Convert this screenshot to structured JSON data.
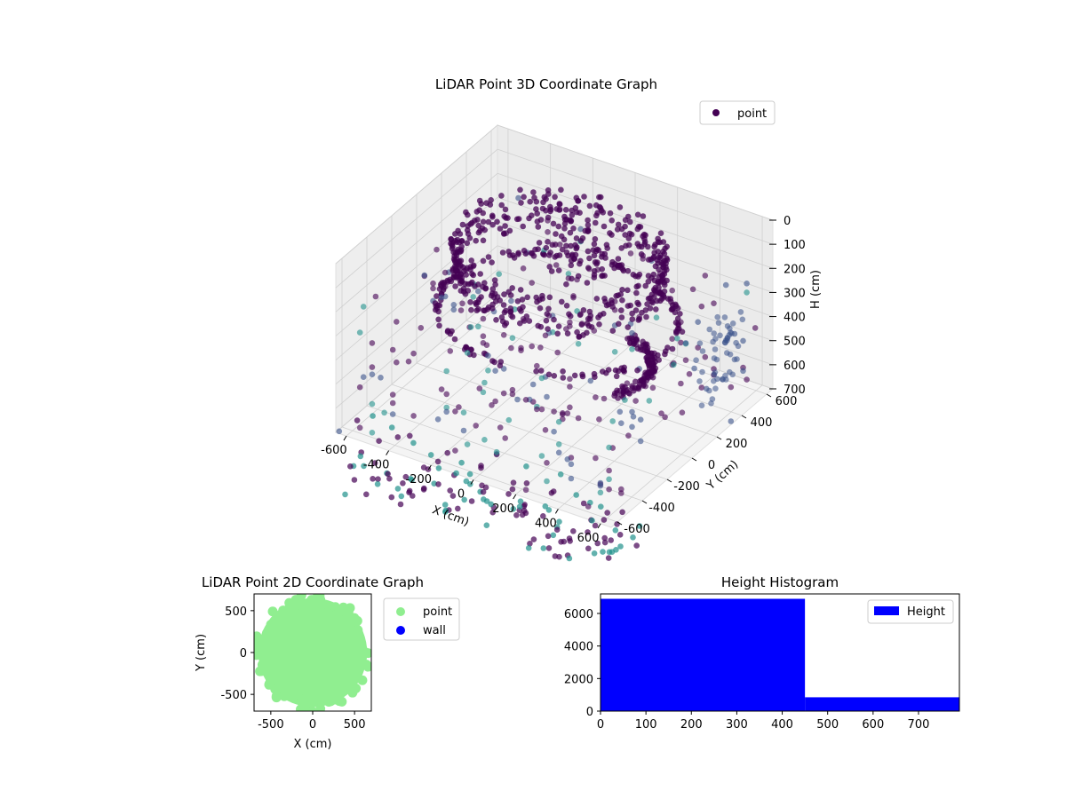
{
  "figure_title": "",
  "colors": {
    "viridis_dark": "#440154",
    "viridis_mid": "#3b528b",
    "viridis_teal": "#21918c",
    "light_green": "#90ee90",
    "blue": "#0000ff",
    "pane": "#f2f2f2",
    "grid": "#d0d0d0"
  },
  "chart_data": [
    {
      "id": "lidar_3d",
      "type": "scatter",
      "title": "LiDAR Point 3D Coordinate Graph",
      "xlabel": "X (cm)",
      "ylabel": "Y (cm)",
      "zlabel": "H (cm)",
      "x_ticks": [
        -600,
        -400,
        -200,
        0,
        200,
        400,
        600
      ],
      "y_ticks": [
        -600,
        -400,
        -200,
        0,
        200,
        400,
        600
      ],
      "z_ticks": [
        0,
        100,
        200,
        300,
        400,
        500,
        600,
        700
      ],
      "z_inverted": true,
      "legend": [
        {
          "label": "point",
          "color": "#440154"
        }
      ],
      "legend_position": "top-right",
      "grid": true,
      "colormap": "viridis",
      "structures": [
        {
          "kind": "ring",
          "center": [
            0,
            0
          ],
          "radius": 430,
          "z_top": 20,
          "z_bottom": 180
        },
        {
          "kind": "ring",
          "center": [
            0,
            0
          ],
          "radius": 500,
          "z": 310
        },
        {
          "kind": "arc",
          "center": [
            150,
            80
          ],
          "radius": 260,
          "z": 480
        },
        {
          "kind": "grid_columns",
          "x_range": [
            -640,
            640
          ],
          "y_range": [
            -640,
            640
          ],
          "z_range": [
            100,
            720
          ]
        }
      ]
    },
    {
      "id": "lidar_2d",
      "type": "scatter",
      "title": "LiDAR Point 2D Coordinate Graph",
      "xlabel": "X (cm)",
      "ylabel": "Y (cm)",
      "x_ticks": [
        -500,
        0,
        500
      ],
      "y_ticks": [
        -500,
        0,
        500
      ],
      "xlim": [
        -700,
        700
      ],
      "ylim": [
        -700,
        700
      ],
      "series": [
        {
          "name": "point",
          "color": "#90ee90",
          "shape": "disk",
          "center": [
            0,
            0
          ],
          "radius": 650
        },
        {
          "name": "wall",
          "color": "#0000ff",
          "points": []
        }
      ],
      "legend_position": "outside-right"
    },
    {
      "id": "height_hist",
      "type": "bar",
      "title": "Height Histogram",
      "xlabel": "",
      "ylabel": "",
      "bins": [
        [
          0,
          450
        ],
        [
          450,
          790
        ]
      ],
      "values": [
        6900,
        850
      ],
      "series_name": "Height",
      "color": "#0000ff",
      "xlim": [
        0,
        790
      ],
      "ylim": [
        0,
        7200
      ],
      "x_ticks": [
        0,
        100,
        200,
        300,
        400,
        500,
        600,
        700
      ],
      "y_ticks": [
        0,
        2000,
        4000,
        6000
      ],
      "legend_position": "top-right"
    }
  ]
}
